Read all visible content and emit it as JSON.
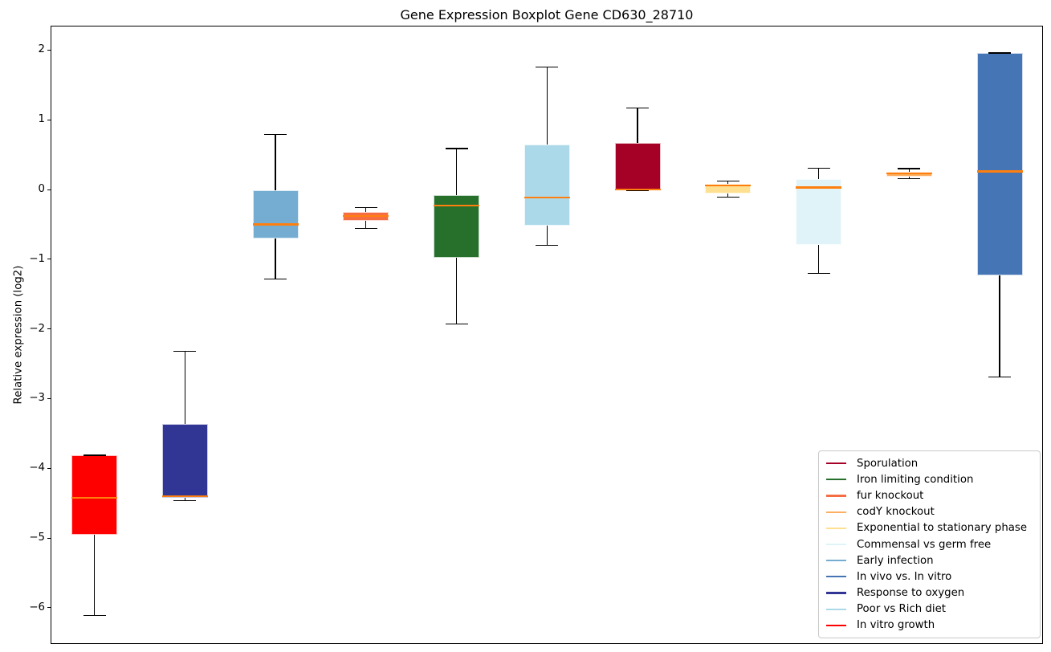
{
  "chart_data": {
    "type": "boxplot",
    "title": "Gene Expression Boxplot Gene CD630_28710",
    "ylabel": "Relative expression (log2)",
    "xlabel": "",
    "ylim": [
      -6.52,
      2.35
    ],
    "yticks": [
      2,
      1,
      0,
      -1,
      -2,
      -3,
      -4,
      -5,
      -6
    ],
    "grid": false,
    "x_tick_labels_shown": false,
    "median_color": "#ff7f0e",
    "whisker_color": "#000000",
    "legend_position": "lower right",
    "series": [
      {
        "name": "In vitro growth",
        "color": "#ff0000",
        "whisker_low": -6.1,
        "q1": -4.94,
        "median": -4.41,
        "q3": -3.8,
        "whisker_high": -3.8
      },
      {
        "name": "Response to oxygen",
        "color": "#313695",
        "whisker_low": -4.45,
        "q1": -4.41,
        "median": -4.39,
        "q3": -3.35,
        "whisker_high": -2.31
      },
      {
        "name": "Early infection",
        "color": "#74add1",
        "whisker_low": -1.27,
        "q1": -0.69,
        "median": -0.49,
        "q3": 0.0,
        "whisker_high": 0.8
      },
      {
        "name": "fur knockout",
        "color": "#f46d43",
        "whisker_low": -0.55,
        "q1": -0.44,
        "median": -0.37,
        "q3": -0.31,
        "whisker_high": -0.25
      },
      {
        "name": "Iron limiting condition",
        "color": "#27702c",
        "whisker_low": -1.92,
        "q1": -0.97,
        "median": -0.22,
        "q3": -0.07,
        "whisker_high": 0.6
      },
      {
        "name": "Poor vs Rich diet",
        "color": "#abd9e9",
        "whisker_low": -0.79,
        "q1": -0.51,
        "median": -0.1,
        "q3": 0.66,
        "whisker_high": 1.77
      },
      {
        "name": "Sporulation",
        "color": "#a50026",
        "whisker_low": 0.0,
        "q1": 0.0,
        "median": 0.01,
        "q3": 0.68,
        "whisker_high": 1.18
      },
      {
        "name": "Exponential to stationary phase",
        "color": "#fee090",
        "whisker_low": -0.1,
        "q1": -0.05,
        "median": 0.07,
        "q3": 0.09,
        "whisker_high": 0.13
      },
      {
        "name": "Commensal vs germ free",
        "color": "#e0f3f8",
        "whisker_low": -1.19,
        "q1": -0.78,
        "median": 0.04,
        "q3": 0.16,
        "whisker_high": 0.32
      },
      {
        "name": "codY knockout",
        "color": "#fdae61",
        "whisker_low": 0.17,
        "q1": 0.2,
        "median": 0.24,
        "q3": 0.27,
        "whisker_high": 0.31
      },
      {
        "name": "In vivo vs. In vitro",
        "color": "#4575b4",
        "whisker_low": -2.68,
        "q1": -1.22,
        "median": 0.27,
        "q3": 1.97,
        "whisker_high": 1.97
      }
    ]
  },
  "legend": {
    "entries": [
      {
        "label": "Sporulation",
        "color": "#a50026"
      },
      {
        "label": "Iron limiting condition",
        "color": "#27702c"
      },
      {
        "label": "fur knockout",
        "color": "#f46d43"
      },
      {
        "label": "codY knockout",
        "color": "#fdae61"
      },
      {
        "label": "Exponential to stationary phase",
        "color": "#fee090"
      },
      {
        "label": "Commensal vs germ free",
        "color": "#e0f3f8"
      },
      {
        "label": "Early infection",
        "color": "#74add1"
      },
      {
        "label": "In vivo vs. In vitro",
        "color": "#4575b4"
      },
      {
        "label": "Response to oxygen",
        "color": "#313695"
      },
      {
        "label": "Poor vs Rich diet",
        "color": "#abd9e9"
      },
      {
        "label": "In vitro growth",
        "color": "#ff0000"
      }
    ]
  }
}
